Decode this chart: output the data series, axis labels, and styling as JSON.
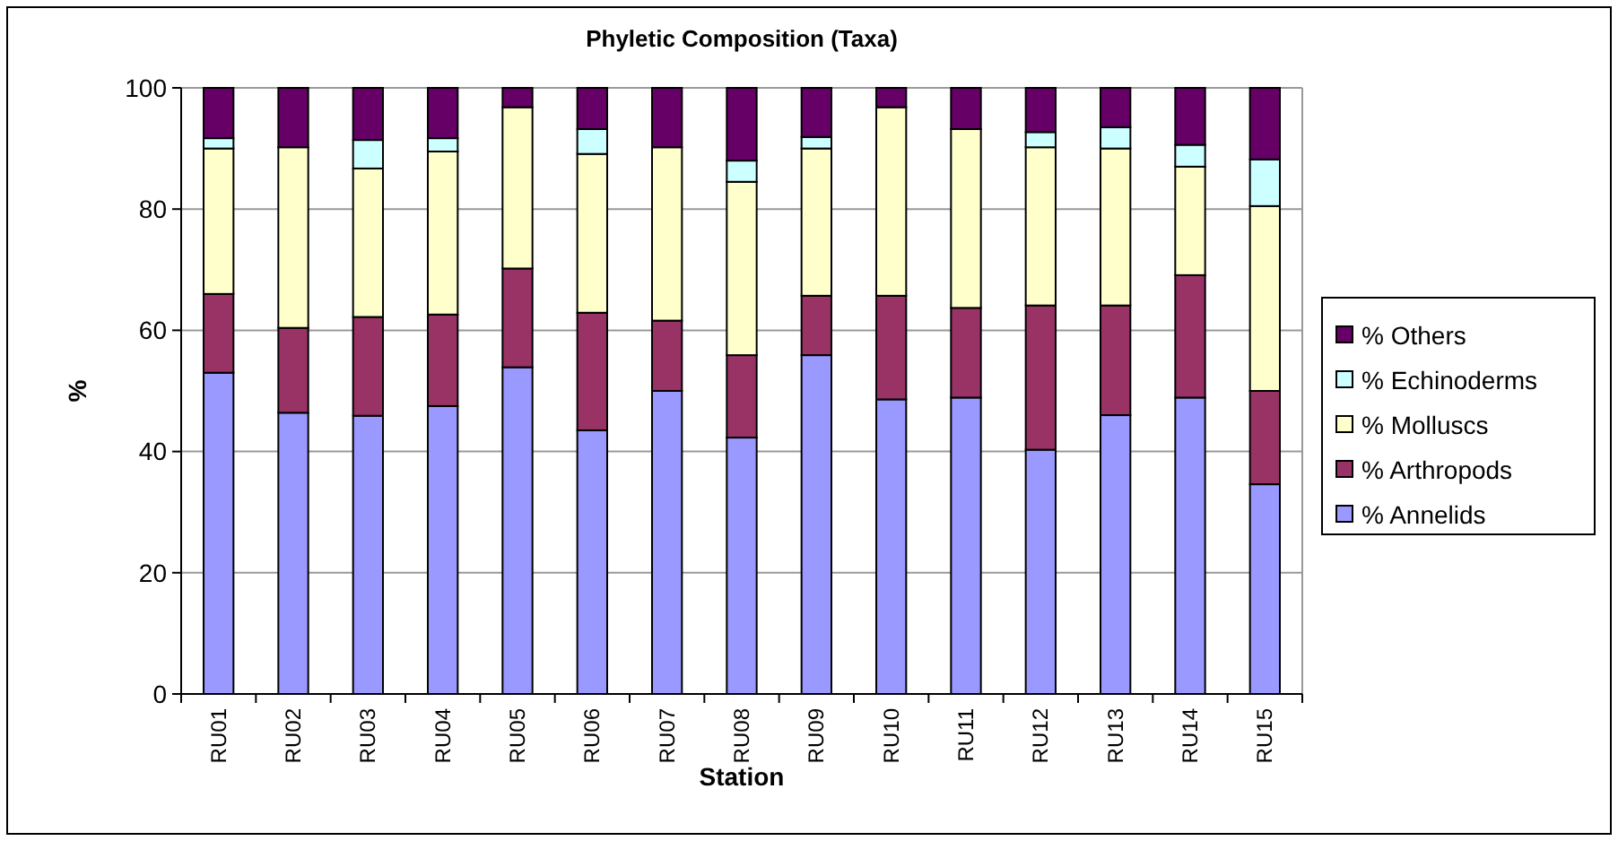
{
  "chart_data": {
    "type": "bar",
    "title": "Phyletic Composition (Taxa)",
    "xlabel": "Station",
    "ylabel": "%",
    "categories": [
      "RU01",
      "RU02",
      "RU03",
      "RU04",
      "RU05",
      "RU06",
      "RU07",
      "RU08",
      "RU09",
      "RU10",
      "RU11",
      "RU12",
      "RU13",
      "RU14",
      "RU15"
    ],
    "stacked": true,
    "ylim": [
      0,
      100
    ],
    "yticks": [
      0,
      20,
      40,
      60,
      80,
      100
    ],
    "grid": "y",
    "legend": "right",
    "series": [
      {
        "name": "% Annelids",
        "color": "#9999ff",
        "values": [
          53,
          46.4,
          45.9,
          47.5,
          53.9,
          43.5,
          50,
          42.3,
          55.9,
          48.6,
          48.9,
          40.3,
          46,
          48.9,
          34.6
        ]
      },
      {
        "name": "% Arthropods",
        "color": "#993366",
        "values": [
          13,
          14,
          16.3,
          15.1,
          16.3,
          19.4,
          11.6,
          13.6,
          9.8,
          17.1,
          14.8,
          23.8,
          18.1,
          20.2,
          15.4
        ]
      },
      {
        "name": "% Molluscs",
        "color": "#ffffcc",
        "values": [
          24,
          29.8,
          24.5,
          26.9,
          26.6,
          26.2,
          28.6,
          28.6,
          24.3,
          31.1,
          29.5,
          26.1,
          25.9,
          17.9,
          30.5
        ]
      },
      {
        "name": "% Echinoderms",
        "color": "#ccffff",
        "values": [
          1.7,
          0,
          4.7,
          2.2,
          0,
          4.1,
          0,
          3.5,
          1.9,
          0,
          0,
          2.5,
          3.5,
          3.6,
          7.7
        ]
      },
      {
        "name": "% Others",
        "color": "#660066",
        "values": [
          8.3,
          9.8,
          8.6,
          8.3,
          3.2,
          6.8,
          9.8,
          12,
          8.1,
          3.2,
          6.8,
          7.3,
          6.5,
          9.4,
          11.8
        ]
      }
    ]
  }
}
